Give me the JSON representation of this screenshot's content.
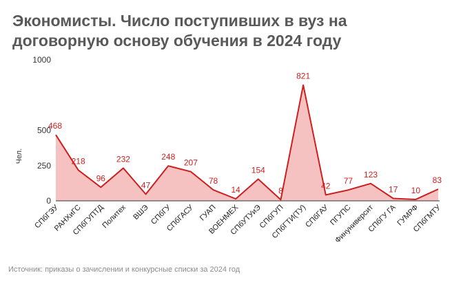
{
  "chart_data": {
    "type": "area",
    "title": "Экономисты. Число поступивших в вуз на договорную основу обучения в 2024 году",
    "ylabel": "Чел.",
    "xlabel": "",
    "categories": [
      "СПбГЭУ",
      "РАНХиГС",
      "СПбГУПТД",
      "Политех",
      "ВШЭ",
      "СПбГУ",
      "СПбГАСУ",
      "ГУАП",
      "ВОЕНМЕХ",
      "СПбУТУиЭ",
      "СПбГУП",
      "СПбГТИ(ТУ)",
      "СПбГАУ",
      "ПГУПС",
      "Финуниверсит",
      "СПбГУ ГА",
      "ГУМРФ",
      "СПбГМТУ"
    ],
    "values": [
      468,
      218,
      96,
      232,
      47,
      248,
      207,
      78,
      14,
      154,
      8,
      821,
      42,
      77,
      123,
      17,
      10,
      83
    ],
    "data_labels": [
      "468",
      "218",
      "96",
      "232",
      "47",
      "248",
      "207",
      "78",
      "14",
      "154",
      "8",
      "821",
      "42",
      "77",
      "123",
      "17",
      "10",
      "83"
    ],
    "ylim": [
      0,
      1000
    ],
    "yticks": [
      "0",
      "250",
      "500",
      "1000"
    ],
    "ytick_values": [
      0,
      250,
      500,
      1000
    ],
    "grid": false,
    "legend": "none",
    "colors": {
      "line": "#cc1f1f",
      "fill": "#f4b6b6",
      "label": "#cc1f1f",
      "axis_text": "#333333",
      "title": "#595959"
    }
  },
  "source": "Источник: приказы о зачислении и конкурсные списки за 2024 год"
}
